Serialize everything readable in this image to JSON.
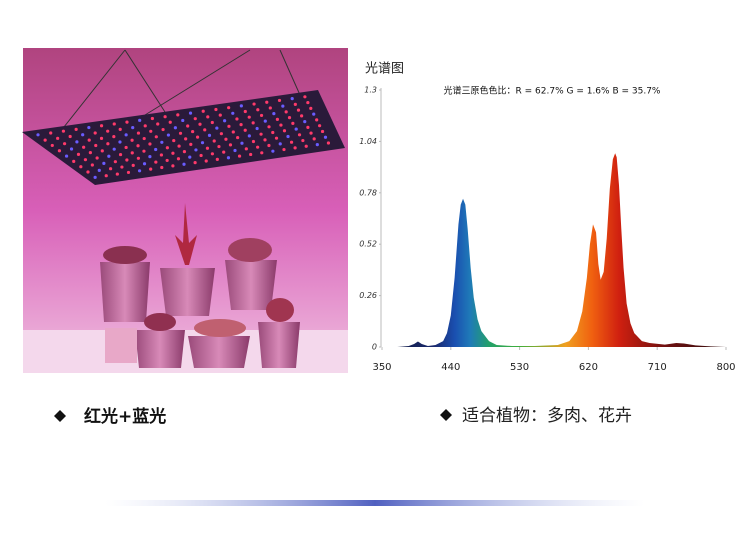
{
  "chart_data": {
    "type": "area",
    "title": "光谱图",
    "annotation": "光谱三原色色比：R = 62.7% G = 1.6% B = 35.7%",
    "x": [
      350,
      370,
      385,
      392,
      397,
      402,
      410,
      420,
      430,
      435,
      440,
      445,
      450,
      453,
      456,
      459,
      462,
      466,
      470,
      475,
      480,
      490,
      500,
      520,
      550,
      580,
      595,
      605,
      612,
      618,
      622,
      626,
      630,
      633,
      636,
      640,
      644,
      648,
      652,
      655,
      657,
      660,
      663,
      666,
      670,
      675,
      680,
      690,
      700,
      720,
      735,
      745,
      760,
      780,
      800
    ],
    "values": [
      0,
      0,
      0.005,
      0.015,
      0.028,
      0.015,
      0.005,
      0.01,
      0.03,
      0.07,
      0.16,
      0.35,
      0.62,
      0.72,
      0.75,
      0.72,
      0.6,
      0.4,
      0.25,
      0.14,
      0.08,
      0.03,
      0.01,
      0.005,
      0.005,
      0.01,
      0.03,
      0.08,
      0.18,
      0.35,
      0.52,
      0.62,
      0.58,
      0.42,
      0.34,
      0.38,
      0.55,
      0.8,
      0.95,
      0.98,
      0.96,
      0.82,
      0.6,
      0.4,
      0.22,
      0.12,
      0.07,
      0.03,
      0.02,
      0.012,
      0.02,
      0.018,
      0.008,
      0.003,
      0
    ],
    "color_stops": [
      {
        "x": 350,
        "color": "#10183a"
      },
      {
        "x": 420,
        "color": "#1a2a70"
      },
      {
        "x": 445,
        "color": "#1a4fb0"
      },
      {
        "x": 465,
        "color": "#1f7ab8"
      },
      {
        "x": 490,
        "color": "#23a06a"
      },
      {
        "x": 530,
        "color": "#3fae3a"
      },
      {
        "x": 590,
        "color": "#f0a020"
      },
      {
        "x": 625,
        "color": "#f06010"
      },
      {
        "x": 660,
        "color": "#d02010"
      },
      {
        "x": 720,
        "color": "#701010"
      },
      {
        "x": 800,
        "color": "#301010"
      }
    ],
    "xlim": [
      350,
      800
    ],
    "xticks": [
      350,
      440,
      530,
      620,
      710,
      800
    ],
    "ylim": [
      0,
      1.3
    ],
    "yticks": [
      0,
      0.26,
      0.52,
      0.78,
      1.04,
      1.3
    ]
  },
  "captions": [
    "红光+蓝光",
    "适合植物：多肉、花卉"
  ]
}
